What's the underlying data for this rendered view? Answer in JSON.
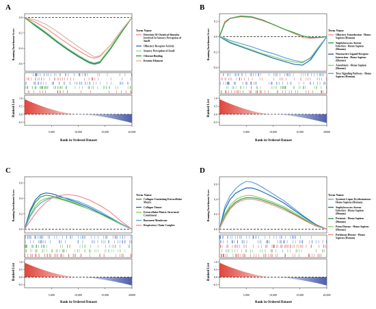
{
  "panels": [
    {
      "label": "A",
      "ylabel_top": "Running Enrichment Score",
      "ylabel_bottom": "Ranked List",
      "xlabel": "Rank in Ordered Dataset",
      "legend_title": "Term Name",
      "legend": [
        "Detection Of Chemical Stimulus Involved In Sensory Perception of Smell",
        "Olfactory Receptor Activity",
        "Sensory Perception of Smell",
        "Odorant Binding",
        "Keratin Filament"
      ]
    },
    {
      "label": "B",
      "ylabel_top": "Running Enrichment Score",
      "ylabel_bottom": "Ranked List",
      "xlabel": "Rank in Ordered Dataset",
      "legend_title": "Term Name",
      "legend": [
        "Olfactory Transduction - Homo Sapiens (Human)",
        "Staphylococcus Aureus Infection - Homo Sapiens (Human)",
        "Neuroactive Ligand-Receptor Interaction - Homo Sapiens (Human)",
        "Amoebiasis - Homo Sapiens (Human)",
        "Toxo Signaling Pathway - Homo Sapiens (Human)"
      ]
    },
    {
      "label": "C",
      "ylabel_top": "Running Enrichment Score",
      "ylabel_bottom": "Ranked List",
      "xlabel": "Rank in Ordered Dataset",
      "legend_title": "Term Name",
      "legend": [
        "Collagen-Containing Extracellular Matrix",
        "Collagen Trimer",
        "Extracellular Matrix Structural Constituent",
        "Basement Membrane",
        "Respiratory Chain Complex"
      ]
    },
    {
      "label": "D",
      "ylabel_top": "Running Enrichment Score",
      "ylabel_bottom": "Ranked List",
      "xlabel": "Rank in Ordered Dataset",
      "legend_title": "Term Name",
      "legend": [
        "Systemic Lupus Erythematosus - Homo Sapiens (Human)",
        "Staphylococcus Aureus Infection - Homo Sapiens (Human)",
        "Pertussis - Homo Sapiens (Human)",
        "Prion Disease - Homo Sapiens (Human)",
        "Parkinson Disease - Homo Sapiens (Human)"
      ]
    }
  ],
  "chart_data": [
    {
      "panel": "A",
      "type": "line",
      "x_ticks": [
        "5,000",
        "10,000",
        "15,000",
        "20,000"
      ],
      "top_y_ticks": [
        "0.0",
        "-0.2",
        "-0.4",
        "-0.6"
      ],
      "top_ylim": [
        -0.7,
        0.05
      ],
      "bottom_y_ticks": [
        "1.0",
        "0.5",
        "0.0",
        "-0.5"
      ],
      "bottom_ylim": [
        -0.7,
        1.2
      ],
      "xlim": [
        0,
        20000
      ],
      "x": [
        0,
        2000,
        4000,
        6000,
        8000,
        10000,
        12000,
        13000,
        14000,
        16000,
        18000,
        20000
      ],
      "series": [
        {
          "color": "#f08a8a",
          "values": [
            0.0,
            -0.06,
            -0.14,
            -0.24,
            -0.34,
            -0.43,
            -0.51,
            -0.53,
            -0.51,
            -0.36,
            -0.17,
            0.0
          ]
        },
        {
          "color": "#3a6fc9",
          "values": [
            0.0,
            -0.1,
            -0.2,
            -0.31,
            -0.41,
            -0.5,
            -0.58,
            -0.6,
            -0.58,
            -0.4,
            -0.19,
            0.0
          ]
        },
        {
          "color": "#9fd87f",
          "values": [
            0.0,
            -0.09,
            -0.19,
            -0.3,
            -0.4,
            -0.49,
            -0.57,
            -0.59,
            -0.57,
            -0.39,
            -0.18,
            0.0
          ]
        },
        {
          "color": "#2f9b3a",
          "values": [
            0.0,
            -0.11,
            -0.21,
            -0.32,
            -0.42,
            -0.51,
            -0.59,
            -0.61,
            -0.59,
            -0.41,
            -0.2,
            0.0
          ]
        },
        {
          "color": "#e2b0a0",
          "values": [
            0.0,
            -0.03,
            -0.09,
            -0.18,
            -0.28,
            -0.38,
            -0.47,
            -0.51,
            -0.5,
            -0.36,
            -0.17,
            0.0
          ]
        }
      ],
      "hits": [
        {
          "color": "#2f5fb3",
          "density": 0.35
        },
        {
          "color": "#d13a3a",
          "density": 0.3
        },
        {
          "color": "#3a6fc9",
          "density": 0.35
        },
        {
          "color": "#2f9b3a",
          "density": 0.4
        },
        {
          "color": "#c62828",
          "density": 0.2
        }
      ]
    },
    {
      "panel": "B",
      "type": "line",
      "x_ticks": [
        "5,000",
        "10,000",
        "15,000",
        "20000"
      ],
      "top_y_ticks": [
        "0.2",
        "0.0",
        "-0.2",
        "-0.4"
      ],
      "top_ylim": [
        -0.45,
        0.3
      ],
      "bottom_y_ticks": [
        "1.0",
        "0.5",
        "0.0",
        "-0.5"
      ],
      "bottom_ylim": [
        -0.7,
        1.2
      ],
      "xlim": [
        0,
        20000
      ],
      "x": [
        0,
        1000,
        2000,
        4000,
        6000,
        8000,
        10000,
        12000,
        14000,
        15500,
        17000,
        18500,
        20000
      ],
      "series": [
        {
          "color": "#f08a8a",
          "values": [
            0.0,
            0.2,
            0.24,
            0.26,
            0.25,
            0.21,
            0.16,
            0.1,
            0.04,
            -0.01,
            -0.02,
            -0.01,
            0.0
          ]
        },
        {
          "color": "#2f9b3a",
          "values": [
            0.0,
            0.18,
            0.24,
            0.27,
            0.26,
            0.22,
            0.16,
            0.1,
            0.05,
            0.01,
            -0.01,
            -0.01,
            0.0
          ]
        },
        {
          "color": "#1f66b3",
          "values": [
            0.0,
            -0.04,
            -0.08,
            -0.13,
            -0.18,
            -0.23,
            -0.28,
            -0.32,
            -0.36,
            -0.37,
            -0.3,
            -0.15,
            0.0
          ]
        },
        {
          "color": "#7fd35f",
          "values": [
            0.0,
            -0.03,
            -0.07,
            -0.12,
            -0.17,
            -0.22,
            -0.26,
            -0.3,
            -0.33,
            -0.34,
            -0.27,
            -0.13,
            0.0
          ]
        },
        {
          "color": "#5aa0e0",
          "values": [
            0.0,
            -0.02,
            -0.05,
            -0.09,
            -0.13,
            -0.18,
            -0.22,
            -0.27,
            -0.31,
            -0.33,
            -0.28,
            -0.14,
            0.0
          ]
        }
      ],
      "hits": [
        {
          "color": "#3a6fc9",
          "density": 0.35
        },
        {
          "color": "#d13a3a",
          "density": 0.25
        },
        {
          "color": "#2f5fb3",
          "density": 0.3
        },
        {
          "color": "#2f9b3a",
          "density": 0.35
        },
        {
          "color": "#c62828",
          "density": 0.25
        }
      ]
    },
    {
      "panel": "C",
      "type": "line",
      "x_ticks": [
        "5,000",
        "10,000",
        "15,000",
        "20000"
      ],
      "top_y_ticks": [
        "0.6",
        "0.4",
        "0.2",
        "0.0"
      ],
      "top_ylim": [
        -0.05,
        0.68
      ],
      "bottom_y_ticks": [
        "1.0",
        "0.5",
        "0.0",
        "-0.5"
      ],
      "bottom_ylim": [
        -0.7,
        1.2
      ],
      "xlim": [
        0,
        20000
      ],
      "x": [
        0,
        1000,
        2000,
        3000,
        4000,
        5000,
        6000,
        8000,
        10000,
        12000,
        14000,
        16000,
        18000,
        20000
      ],
      "series": [
        {
          "color": "#2f9b3a",
          "values": [
            0.0,
            0.22,
            0.35,
            0.42,
            0.44,
            0.43,
            0.41,
            0.37,
            0.32,
            0.26,
            0.2,
            0.13,
            0.06,
            0.0
          ]
        },
        {
          "color": "#1f66b3",
          "values": [
            0.0,
            0.24,
            0.38,
            0.45,
            0.47,
            0.46,
            0.44,
            0.39,
            0.34,
            0.28,
            0.21,
            0.14,
            0.06,
            0.0
          ]
        },
        {
          "color": "#7fd35f",
          "values": [
            0.0,
            0.18,
            0.3,
            0.37,
            0.4,
            0.41,
            0.4,
            0.36,
            0.31,
            0.26,
            0.2,
            0.13,
            0.06,
            0.0
          ]
        },
        {
          "color": "#5aa0e0",
          "values": [
            0.0,
            0.16,
            0.27,
            0.34,
            0.38,
            0.41,
            0.42,
            0.4,
            0.36,
            0.3,
            0.23,
            0.15,
            0.07,
            0.0
          ]
        },
        {
          "color": "#f08a8a",
          "values": [
            0.0,
            0.1,
            0.2,
            0.28,
            0.35,
            0.4,
            0.43,
            0.45,
            0.43,
            0.38,
            0.31,
            0.22,
            0.1,
            0.0
          ]
        }
      ],
      "hits": [
        {
          "color": "#3a6fc9",
          "density": 0.35
        },
        {
          "color": "#2f5fb3",
          "density": 0.3
        },
        {
          "color": "#2f9b3a",
          "density": 0.35
        },
        {
          "color": "#5fb84a",
          "density": 0.35
        },
        {
          "color": "#d13a3a",
          "density": 0.3
        }
      ]
    },
    {
      "panel": "D",
      "type": "line",
      "x_ticks": [
        "5,000",
        "10,000",
        "15,000",
        "20,000"
      ],
      "top_y_ticks": [
        "0.6",
        "0.4",
        "0.2",
        "0.0"
      ],
      "top_ylim": [
        -0.05,
        0.7
      ],
      "bottom_y_ticks": [
        "1.0",
        "0.5",
        "0.0",
        "-0.5"
      ],
      "bottom_ylim": [
        -0.7,
        1.2
      ],
      "xlim": [
        0,
        20000
      ],
      "x": [
        0,
        1000,
        2000,
        3000,
        4000,
        5000,
        6000,
        7000,
        8000,
        10000,
        12000,
        14000,
        16000,
        18000,
        20000
      ],
      "series": [
        {
          "color": "#5aa0e0",
          "values": [
            0.0,
            0.3,
            0.45,
            0.54,
            0.6,
            0.64,
            0.63,
            0.6,
            0.56,
            0.47,
            0.38,
            0.27,
            0.16,
            0.06,
            0.0
          ]
        },
        {
          "color": "#1f66b3",
          "values": [
            0.0,
            0.26,
            0.4,
            0.48,
            0.52,
            0.55,
            0.55,
            0.53,
            0.5,
            0.43,
            0.35,
            0.25,
            0.15,
            0.06,
            0.0
          ]
        },
        {
          "color": "#2f9b3a",
          "values": [
            0.0,
            0.18,
            0.29,
            0.36,
            0.4,
            0.42,
            0.42,
            0.41,
            0.39,
            0.34,
            0.28,
            0.2,
            0.12,
            0.05,
            0.0
          ]
        },
        {
          "color": "#7fd35f",
          "values": [
            0.0,
            0.2,
            0.32,
            0.39,
            0.43,
            0.45,
            0.45,
            0.43,
            0.41,
            0.36,
            0.3,
            0.22,
            0.13,
            0.05,
            0.0
          ]
        },
        {
          "color": "#f08a8a",
          "values": [
            0.0,
            0.15,
            0.27,
            0.34,
            0.38,
            0.4,
            0.4,
            0.39,
            0.37,
            0.32,
            0.26,
            0.19,
            0.11,
            0.04,
            0.0
          ]
        }
      ],
      "hits": [
        {
          "color": "#3a6fc9",
          "density": 0.3
        },
        {
          "color": "#2f5fb3",
          "density": 0.3
        },
        {
          "color": "#d13a3a",
          "density": 0.3
        },
        {
          "color": "#2f9b3a",
          "density": 0.35
        },
        {
          "color": "#d13a3a",
          "density": 0.3
        }
      ]
    }
  ]
}
